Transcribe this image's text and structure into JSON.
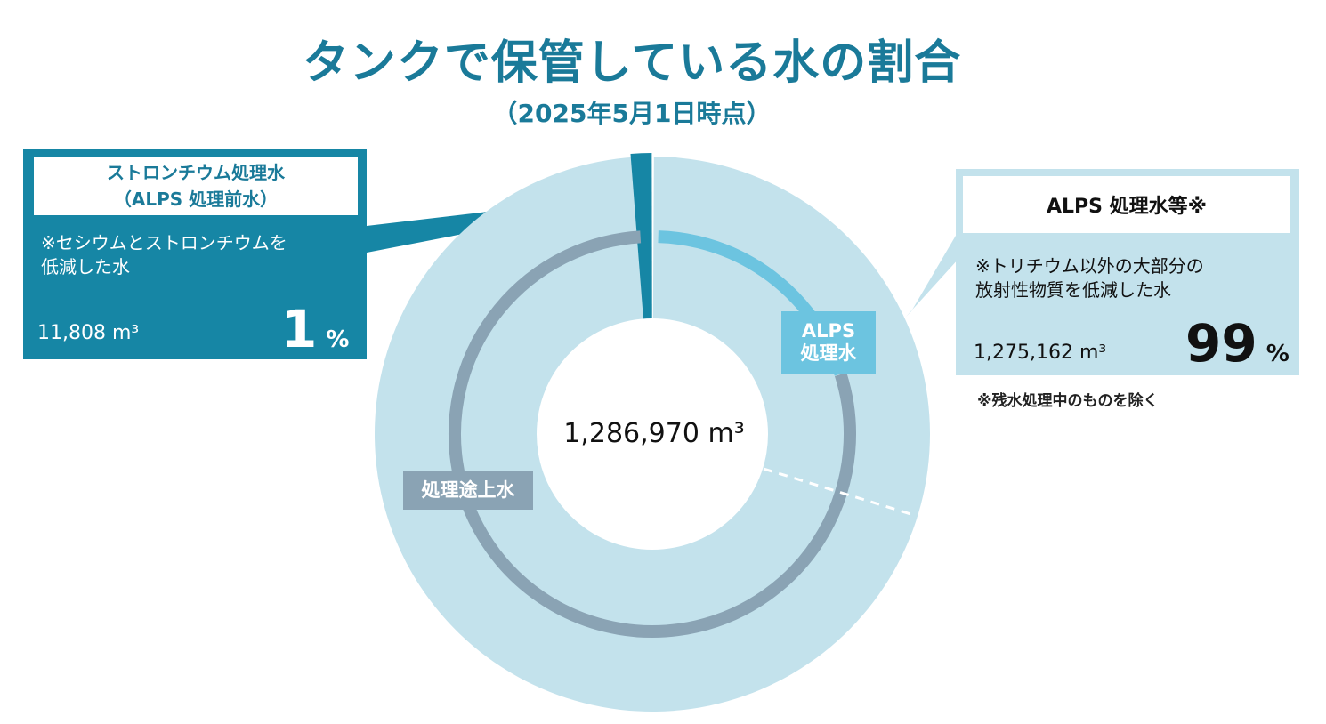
{
  "title": "タンクで保管している水の割合",
  "subtitle": "（2025年5月1日時点）",
  "colors": {
    "outer_ring": "#c3e2ec",
    "strontium": "#1686a5",
    "alps_ring": "#6cc4e0",
    "mid_ring": "#8aa3b4",
    "title": "#1a7a99"
  },
  "chart_data": {
    "type": "pie",
    "total": {
      "value": "1,286,970",
      "unit": "m³"
    },
    "slices": [
      {
        "name": "ストロンチウム処理水",
        "value": 11808,
        "percent": 1
      },
      {
        "name": "ALPS 処理水等",
        "value": 1275162,
        "percent": 99
      }
    ],
    "inner_ring": [
      {
        "label": "ALPS\n処理水",
        "share": 0.2
      },
      {
        "label": "処理途上水",
        "share": 0.8
      }
    ]
  },
  "left_panel": {
    "title": "ストロンチウム処理水",
    "subtitle": "（ALPS 処理前水）",
    "note": "※セシウムとストロンチウムを\n低減した水",
    "amount": "11,808",
    "unit": "m³",
    "percent": "1",
    "percent_sign": "%"
  },
  "right_panel": {
    "title": "ALPS 処理水等※",
    "note": "※トリチウム以外の大部分の\n放射性物質を低減した水",
    "amount": "1,275,162",
    "unit": "m³",
    "percent": "99",
    "percent_sign": "%",
    "footnote": "※残水処理中のものを除く"
  }
}
